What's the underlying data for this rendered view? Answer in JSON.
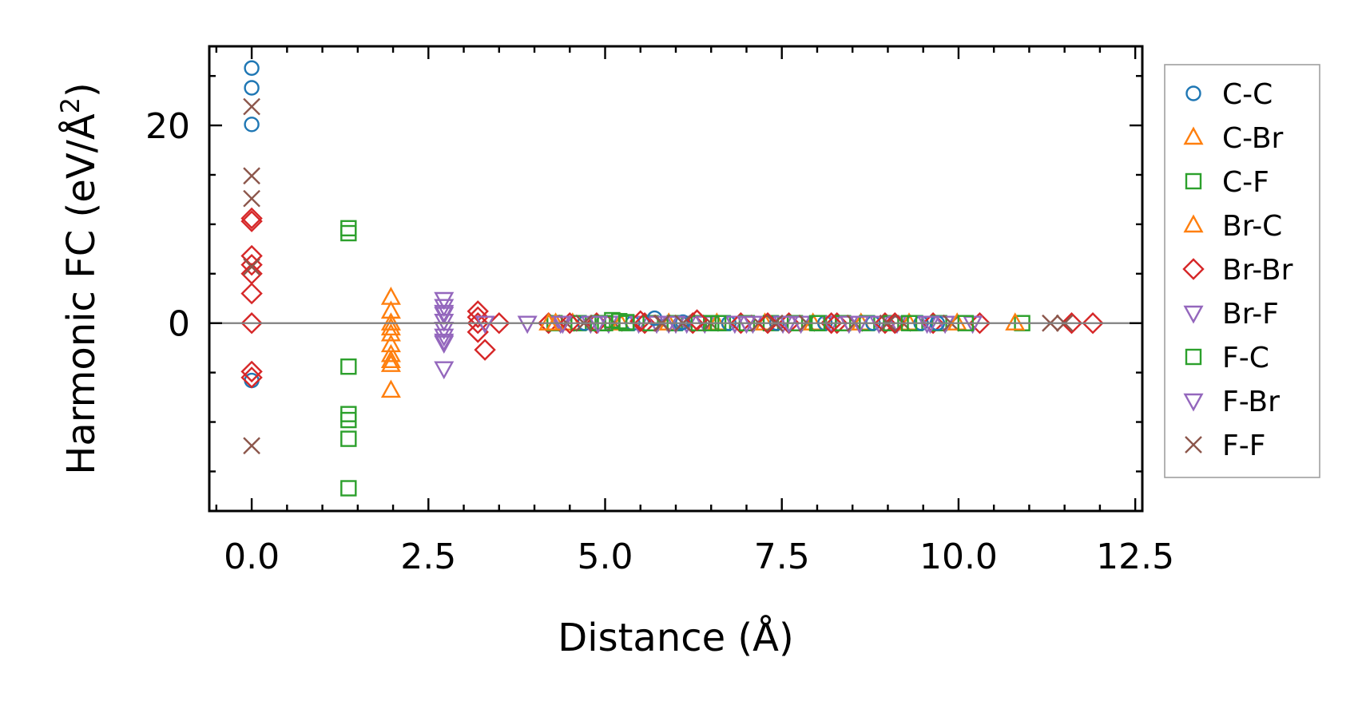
{
  "chart_data": {
    "type": "scatter",
    "title": "",
    "xlabel": "Distance (Å)",
    "ylabel_main": "Harmonic FC (eV/Å",
    "ylabel_sup": "2",
    "ylabel_close": ")",
    "xlim": [
      -0.6,
      12.6
    ],
    "ylim": [
      -19,
      28
    ],
    "xticks": [
      0.0,
      2.5,
      5.0,
      7.5,
      10.0,
      12.5
    ],
    "xtick_labels": [
      "0.0",
      "2.5",
      "5.0",
      "7.5",
      "10.0",
      "12.5"
    ],
    "yticks": [
      0,
      20
    ],
    "ytick_labels": [
      "0",
      "20"
    ],
    "hline_y": 0,
    "legend_position": "right-outside",
    "series": [
      {
        "name": "C-C",
        "marker": "circle",
        "color": "#1f77b4",
        "points": [
          [
            0,
            25.8
          ],
          [
            0,
            23.8
          ],
          [
            0,
            20.1
          ],
          [
            0,
            -5.8
          ],
          [
            5.7,
            0.5
          ],
          [
            6.1,
            0.1
          ],
          [
            9.7,
            0
          ]
        ]
      },
      {
        "name": "C-Br",
        "marker": "triangle-up",
        "color": "#ff7f0e",
        "points": [
          [
            1.97,
            2.6
          ],
          [
            1.97,
            1.2
          ],
          [
            1.97,
            0
          ],
          [
            1.97,
            -1.1
          ],
          [
            1.97,
            -2.2
          ],
          [
            1.97,
            -3.2
          ],
          [
            1.97,
            -4.2
          ],
          [
            1.97,
            -6.8
          ],
          [
            4.2,
            0
          ]
        ]
      },
      {
        "name": "C-F",
        "marker": "square",
        "color": "#2ca02c",
        "points": [
          [
            1.37,
            9.6
          ],
          [
            1.37,
            9.1
          ],
          [
            1.37,
            -4.4
          ],
          [
            1.37,
            -9.2
          ],
          [
            1.37,
            -9.8
          ],
          [
            1.37,
            -11.7
          ],
          [
            1.37,
            -16.7
          ],
          [
            5.1,
            0.3
          ],
          [
            5.2,
            0.2
          ],
          [
            5.0,
            0
          ],
          [
            6.5,
            0
          ],
          [
            10.9,
            0
          ]
        ]
      },
      {
        "name": "Br-C",
        "marker": "triangle-up",
        "color": "#ff7f0e",
        "points": [
          [
            1.97,
            -0.5
          ],
          [
            1.97,
            -3.8
          ],
          [
            4.3,
            0
          ],
          [
            10.8,
            0
          ]
        ]
      },
      {
        "name": "Br-Br",
        "marker": "diamond",
        "color": "#d62728",
        "points": [
          [
            0,
            10.6
          ],
          [
            0,
            10.3
          ],
          [
            0,
            6.8
          ],
          [
            0,
            5.9
          ],
          [
            0,
            5.0
          ],
          [
            0,
            3.0
          ],
          [
            0,
            0
          ],
          [
            0,
            -4.9
          ],
          [
            0,
            -5.5
          ],
          [
            3.2,
            1.2
          ],
          [
            3.2,
            0.6
          ],
          [
            3.2,
            0
          ],
          [
            3.2,
            -0.9
          ],
          [
            3.3,
            -2.7
          ],
          [
            3.5,
            0
          ],
          [
            4.5,
            0
          ],
          [
            5.5,
            0.2
          ],
          [
            6.3,
            0.3
          ],
          [
            7.3,
            0
          ],
          [
            8.2,
            0
          ],
          [
            9.1,
            0
          ],
          [
            10.3,
            0
          ],
          [
            11.6,
            0
          ],
          [
            11.9,
            0
          ]
        ]
      },
      {
        "name": "Br-F",
        "marker": "triangle-down",
        "color": "#9467bd",
        "points": [
          [
            2.72,
            2.4
          ],
          [
            2.72,
            1.7
          ],
          [
            2.72,
            0.9
          ],
          [
            2.72,
            0.2
          ],
          [
            2.72,
            -0.6
          ],
          [
            2.72,
            -1.3
          ],
          [
            2.72,
            -2.0
          ],
          [
            2.72,
            -4.6
          ],
          [
            3.3,
            0
          ],
          [
            3.9,
            0
          ],
          [
            4.4,
            0
          ],
          [
            5.9,
            0
          ],
          [
            7.0,
            0
          ],
          [
            8.6,
            0
          ],
          [
            10.2,
            0
          ]
        ]
      },
      {
        "name": "F-C",
        "marker": "square",
        "color": "#2ca02c",
        "points": [
          [
            4.9,
            0
          ],
          [
            5.3,
            0.1
          ],
          [
            6.6,
            0
          ],
          [
            8.0,
            0
          ],
          [
            9.3,
            0
          ],
          [
            10.1,
            0
          ]
        ]
      },
      {
        "name": "F-Br",
        "marker": "triangle-down",
        "color": "#9467bd",
        "points": [
          [
            2.72,
            1.1
          ],
          [
            2.72,
            -1.8
          ],
          [
            4.9,
            0
          ],
          [
            6.0,
            0
          ],
          [
            7.6,
            0
          ],
          [
            9.6,
            0
          ]
        ]
      },
      {
        "name": "F-F",
        "marker": "x",
        "color": "#8c564b",
        "points": [
          [
            0,
            21.9
          ],
          [
            0,
            14.9
          ],
          [
            0,
            12.6
          ],
          [
            0,
            5.7
          ],
          [
            0,
            -12.4
          ],
          [
            4.7,
            0
          ],
          [
            5.8,
            0
          ],
          [
            6.1,
            0
          ],
          [
            7.4,
            0
          ],
          [
            9.0,
            0
          ],
          [
            11.3,
            0
          ],
          [
            11.5,
            0
          ]
        ]
      }
    ],
    "dense_band": {
      "x_from": 4.2,
      "x_to": 10.0,
      "y": 0,
      "series_cycle": [
        "Br-Br",
        "C-F",
        "Br-F",
        "F-F",
        "C-Br",
        "F-C",
        "C-C",
        "F-Br"
      ]
    }
  }
}
